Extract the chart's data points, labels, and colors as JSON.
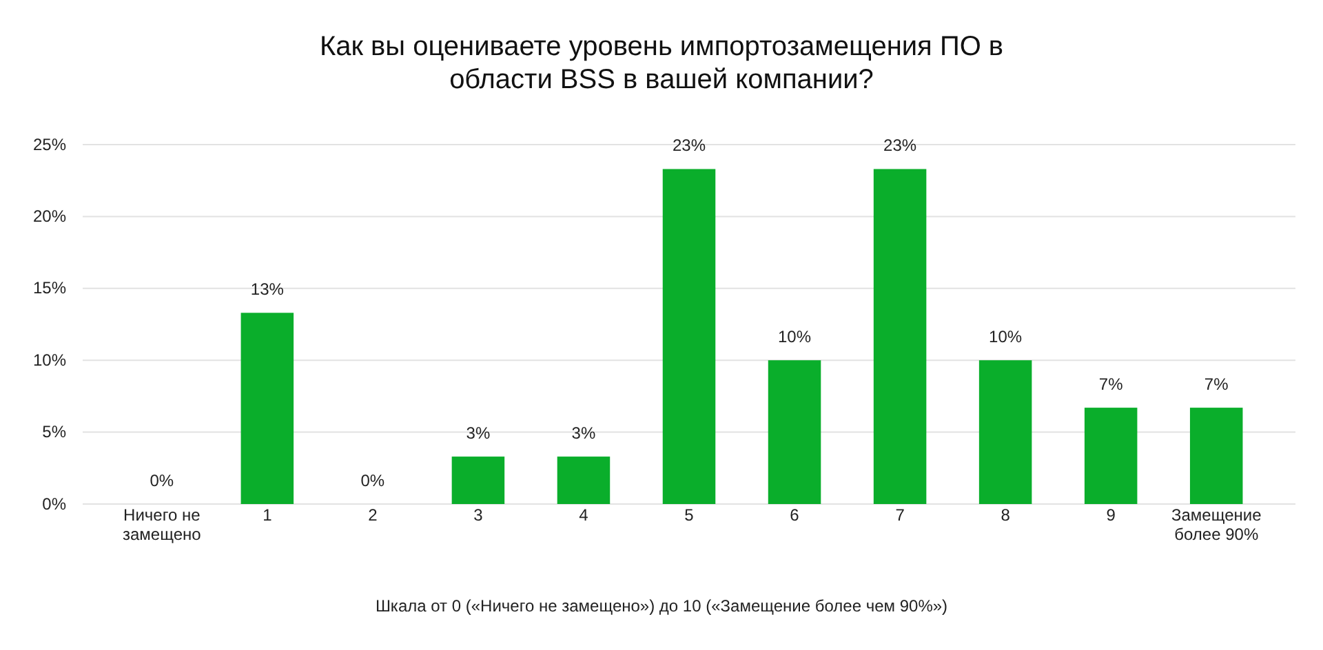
{
  "chart_data": {
    "type": "bar",
    "title": "Как вы оцениваете уровень импортозамещения ПО в области BSS в вашей компании?",
    "categories": [
      "Ничего не замещено",
      "1",
      "2",
      "3",
      "4",
      "5",
      "6",
      "7",
      "8",
      "9",
      "Замещение более 90%"
    ],
    "values": [
      0,
      13.3,
      0,
      3.3,
      3.3,
      23.3,
      10,
      23.3,
      10,
      6.7,
      6.7
    ],
    "value_labels": [
      "0%",
      "13%",
      "0%",
      "3%",
      "3%",
      "23%",
      "10%",
      "23%",
      "10%",
      "7%",
      "7%"
    ],
    "color": "#0aae2b",
    "ylim": [
      0,
      25
    ],
    "yticks": [
      {
        "value": 0,
        "label": "0%"
      },
      {
        "value": 5,
        "label": "5%"
      },
      {
        "value": 10,
        "label": "10%"
      },
      {
        "value": 15,
        "label": "15%"
      },
      {
        "value": 20,
        "label": "20%"
      },
      {
        "value": 25,
        "label": "25%"
      }
    ],
    "grid": "y",
    "annotations": [
      "Шкала от 0 («Ничего не замещено») до 10 («Замещение более чем 90%»)"
    ]
  }
}
